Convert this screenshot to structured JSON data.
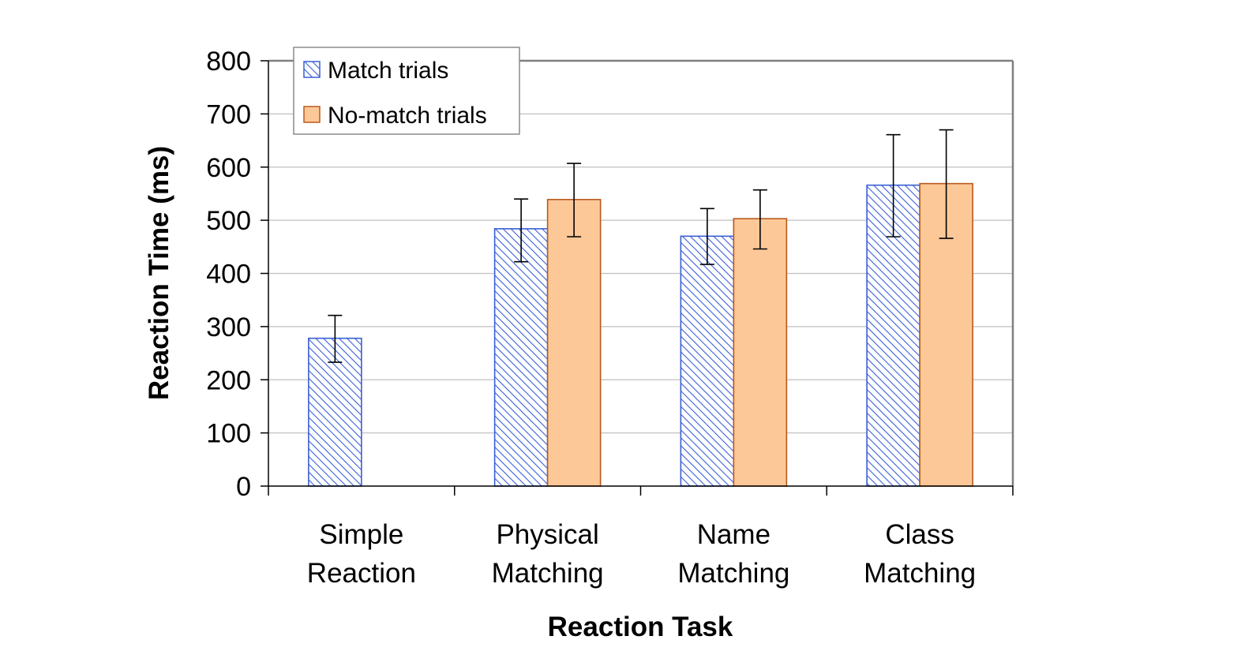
{
  "chart_data": {
    "type": "bar",
    "categories": [
      [
        "Simple",
        "Reaction"
      ],
      [
        "Physical",
        "Matching"
      ],
      [
        "Name",
        "Matching"
      ],
      [
        "Class",
        "Matching"
      ]
    ],
    "series": [
      {
        "name": "Match trials",
        "values": [
          278,
          484,
          470,
          566
        ],
        "error_low": [
          233,
          422,
          417,
          469
        ],
        "error_high": [
          321,
          540,
          522,
          661
        ],
        "fill": "#ffffff",
        "hatch_color": "#3a5fd6",
        "stroke": "#3a5fd6"
      },
      {
        "name": "No-match trials",
        "values": [
          null,
          539,
          503,
          569
        ],
        "error_low": [
          null,
          469,
          446,
          466
        ],
        "error_high": [
          null,
          607,
          557,
          670
        ],
        "fill": "#fcc898",
        "stroke": "#b85a1e"
      }
    ],
    "xlabel": "Reaction Task",
    "ylabel": "Reaction Time (ms)",
    "ylim": [
      0,
      800
    ],
    "yticks": [
      0,
      100,
      200,
      300,
      400,
      500,
      600,
      700,
      800
    ],
    "grid": true,
    "legend_position": "top-left"
  }
}
